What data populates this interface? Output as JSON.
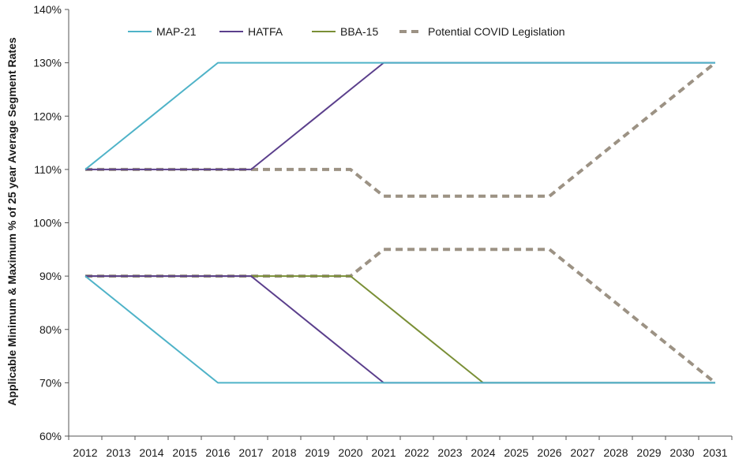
{
  "chart_data": {
    "type": "line",
    "title": "",
    "xlabel": "",
    "ylabel": "Applicable Minimum & Maximum % of 25 year Average Segment Rates",
    "ylim": [
      60,
      140
    ],
    "y_ticks": [
      60,
      70,
      80,
      90,
      100,
      110,
      120,
      130,
      140
    ],
    "y_tick_labels": [
      "60%",
      "70%",
      "80%",
      "90%",
      "100%",
      "110%",
      "120%",
      "130%",
      "140%"
    ],
    "categories": [
      "2012",
      "2013",
      "2014",
      "2015",
      "2016",
      "2017",
      "2018",
      "2019",
      "2020",
      "2021",
      "2022",
      "2023",
      "2024",
      "2025",
      "2026",
      "2027",
      "2028",
      "2029",
      "2030",
      "2031"
    ],
    "grid": false,
    "legend_position": "top",
    "series": [
      {
        "name": "MAP-21",
        "color": "#4fb3c8",
        "dashed": false,
        "bands": [
          [
            110,
            115,
            120,
            125,
            130,
            130,
            130,
            130,
            130,
            130,
            130,
            130,
            130,
            130,
            130,
            130,
            130,
            130,
            130,
            130
          ],
          [
            90,
            85,
            80,
            75,
            70,
            70,
            70,
            70,
            70,
            70,
            70,
            70,
            70,
            70,
            70,
            70,
            70,
            70,
            70,
            70
          ]
        ]
      },
      {
        "name": "HATFA",
        "color": "#5b3f8c",
        "dashed": false,
        "bands": [
          [
            110,
            110,
            110,
            110,
            110,
            110,
            115,
            120,
            125,
            130,
            130,
            130,
            130,
            130,
            130,
            130,
            130,
            130,
            130,
            130
          ],
          [
            90,
            90,
            90,
            90,
            90,
            90,
            85,
            80,
            75,
            70,
            70,
            70,
            70,
            70,
            70,
            70,
            70,
            70,
            70,
            70
          ]
        ]
      },
      {
        "name": "BBA-15",
        "color": "#7a8f36",
        "dashed": false,
        "bands": [
          [
            90,
            90,
            90,
            90,
            90,
            90,
            90,
            90,
            90,
            85,
            80,
            75,
            70,
            70,
            70,
            70,
            70,
            70,
            70,
            70
          ]
        ]
      },
      {
        "name": "Potential COVID Legislation",
        "color": "#9c9284",
        "dashed": true,
        "bands": [
          [
            110,
            110,
            110,
            110,
            110,
            110,
            110,
            110,
            110,
            105,
            105,
            105,
            105,
            105,
            105,
            110,
            115,
            120,
            125,
            130
          ],
          [
            90,
            90,
            90,
            90,
            90,
            90,
            90,
            90,
            90,
            95,
            95,
            95,
            95,
            95,
            95,
            90,
            85,
            80,
            75,
            70
          ]
        ]
      }
    ]
  }
}
